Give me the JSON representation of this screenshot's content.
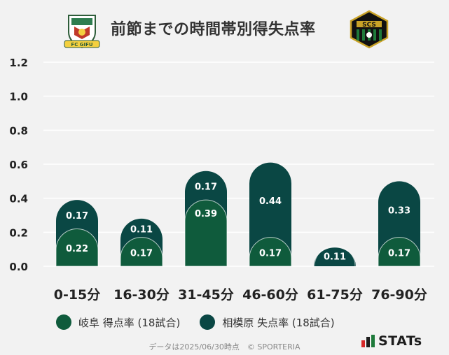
{
  "header": {
    "title": "前節までの時間帯別得失点率",
    "left_logo_text": "FC GIFU",
    "right_logo_text": "SCS"
  },
  "colors": {
    "gifu_scored": "#0f5b3c",
    "sagamihara_conceded": "#0a4744",
    "gridline": "#ffffff",
    "background": "#f2f2f2"
  },
  "chart_data": {
    "type": "bar",
    "stacked": true,
    "categories": [
      "0-15分",
      "16-30分",
      "31-45分",
      "46-60分",
      "61-75分",
      "76-90分"
    ],
    "series": [
      {
        "name": "岐阜 得点率 (18試合)",
        "values": [
          0.22,
          0.17,
          0.39,
          0.17,
          0.0,
          0.17
        ],
        "labels": [
          "0.22",
          "0.17",
          "0.39",
          "0.17",
          "",
          "0.17"
        ],
        "color": "#0f5b3c"
      },
      {
        "name": "相模原 失点率 (18試合)",
        "values": [
          0.17,
          0.11,
          0.17,
          0.44,
          0.11,
          0.33
        ],
        "labels": [
          "0.17",
          "0.11",
          "0.17",
          "0.44",
          "0.11",
          "0.33"
        ],
        "color": "#0a4744"
      }
    ],
    "ylim": [
      0,
      1.2
    ],
    "yticks": [
      "0.0",
      "0.2",
      "0.4",
      "0.6",
      "0.8",
      "1.0",
      "1.2"
    ],
    "grid": true,
    "legend_position": "bottom"
  },
  "footer": {
    "note": "データは2025/06/30時点　© SPORTERIA",
    "brand": "STATs"
  }
}
